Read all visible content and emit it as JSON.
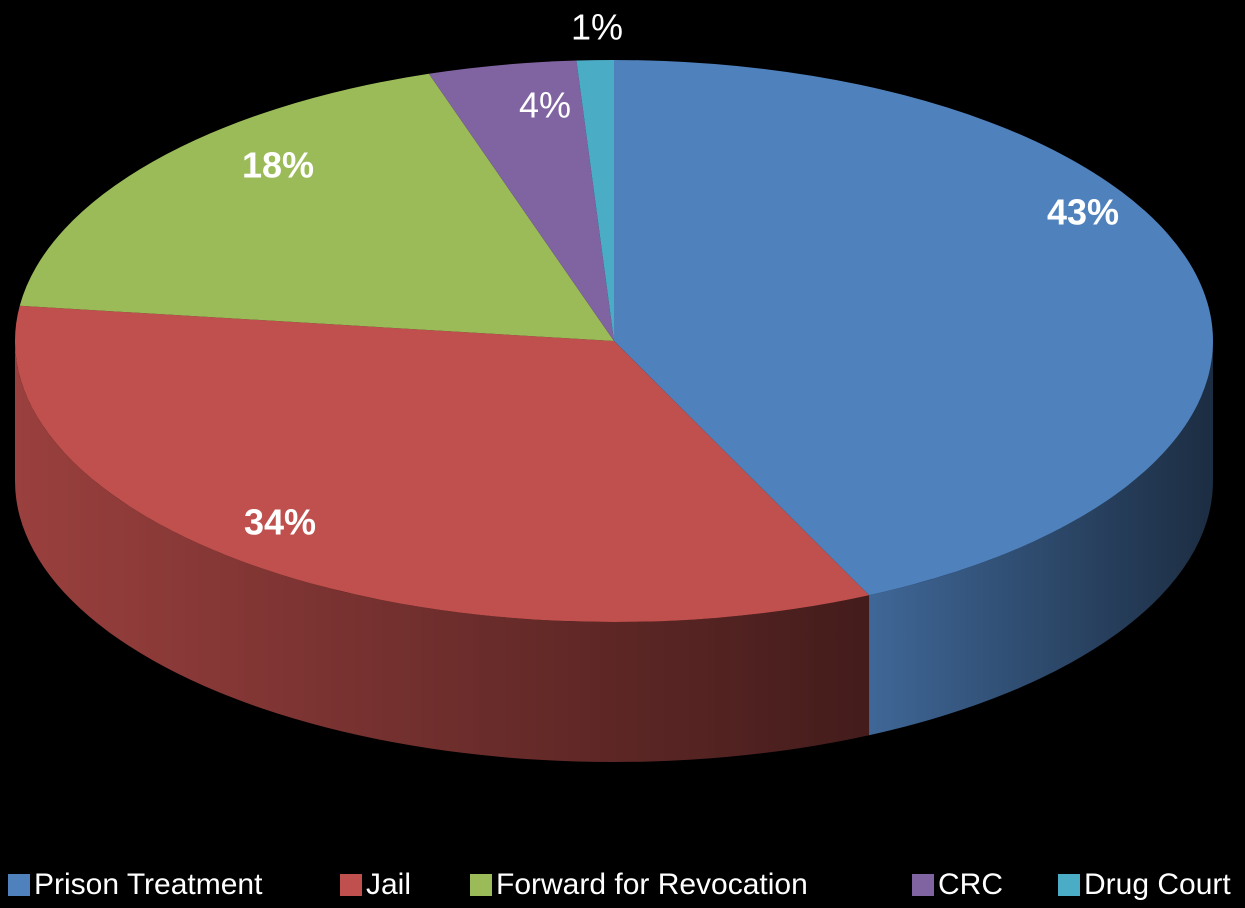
{
  "chart_data": {
    "type": "pie",
    "categories": [
      "Prison Treatment",
      "Jail",
      "Forward for Revocation",
      "CRC",
      "Drug Court"
    ],
    "values": [
      43,
      34,
      18,
      4,
      1
    ],
    "value_labels": [
      "43%",
      "34%",
      "18%",
      "4%",
      "1%"
    ],
    "colors": [
      "#4f81bd",
      "#c0504d",
      "#9bbb59",
      "#8064a2",
      "#4bacc6"
    ],
    "legend": "bottom"
  }
}
